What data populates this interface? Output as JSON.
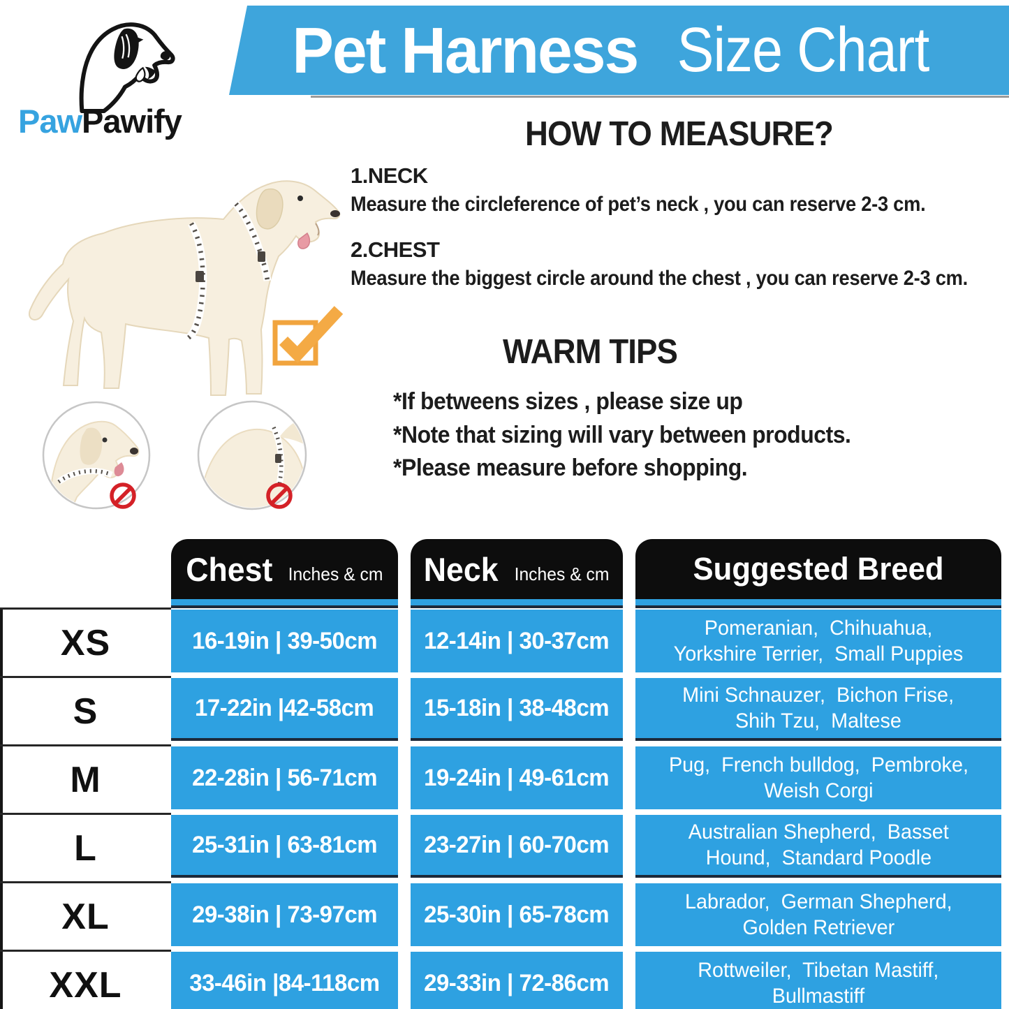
{
  "colors": {
    "banner_blue": "#3ea5dc",
    "cell_blue": "#2ea1e1",
    "header_black": "#0d0d0d",
    "accent_orange": "#f1a43e",
    "prohibit_red": "#d42127",
    "logo_blue": "#36a3e0",
    "dark_line": "#1d2a3a"
  },
  "logo": {
    "brand_blue": "Paw",
    "brand_black": "Pawify"
  },
  "banner": {
    "title_bold": "Pet Harness",
    "title_light": "Size Chart"
  },
  "how_to_measure": {
    "title": "HOW TO MEASURE?",
    "steps": [
      {
        "label": "1.NECK",
        "text": "Measure the circleference of pet’s neck , you can reserve 2-3 cm."
      },
      {
        "label": "2.CHEST",
        "text": "Measure the biggest circle around the chest , you can reserve 2-3 cm."
      }
    ]
  },
  "warm_tips": {
    "title": "WARM TIPS",
    "tips": [
      "*If betweens sizes , please size up",
      "*Note that sizing will vary between products.",
      "*Please measure before shopping."
    ]
  },
  "table": {
    "headers": [
      {
        "label": "Chest",
        "sub": "Inches & cm"
      },
      {
        "label": "Neck",
        "sub": "Inches & cm"
      },
      {
        "label": "Suggested Breed",
        "sub": ""
      }
    ],
    "rows": [
      {
        "size": "XS",
        "chest": "16-19in | 39-50cm",
        "neck": "12-14in | 30-37cm",
        "breed": [
          "Pomeranian,  Chihuahua,",
          "Yorkshire Terrier,  Small Puppies"
        ]
      },
      {
        "size": "S",
        "chest": "17-22in |42-58cm",
        "neck": "15-18in | 38-48cm",
        "breed": [
          "Mini Schnauzer,  Bichon Frise,",
          "Shih Tzu,  Maltese"
        ]
      },
      {
        "size": "M",
        "chest": "22-28in | 56-71cm",
        "neck": "19-24in | 49-61cm",
        "breed": [
          "Pug,  French bulldog,  Pembroke,",
          "Weish Corgi"
        ]
      },
      {
        "size": "L",
        "chest": "25-31in | 63-81cm",
        "neck": "23-27in | 60-70cm",
        "breed": [
          "Australian Shepherd,  Basset",
          "Hound,  Standard Poodle"
        ]
      },
      {
        "size": "XL",
        "chest": "29-38in | 73-97cm",
        "neck": "25-30in | 65-78cm",
        "breed": [
          "Labrador,  German Shepherd,",
          "Golden Retriever"
        ]
      },
      {
        "size": "XXL",
        "chest": "33-46in |84-118cm",
        "neck": "29-33in | 72-86cm",
        "breed": [
          "Rottweiler,  Tibetan Mastiff,",
          "Bullmastiff"
        ]
      }
    ]
  }
}
